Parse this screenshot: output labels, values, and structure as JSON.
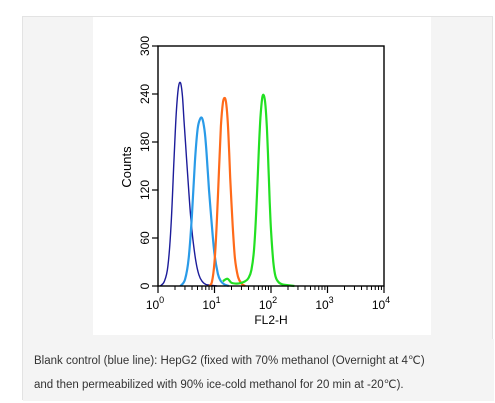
{
  "chart_data": {
    "type": "line",
    "xlabel": "FL2-H",
    "ylabel": "Counts",
    "xscale": "log",
    "xlim": [
      1,
      10000
    ],
    "ylim": [
      0,
      300
    ],
    "x_ticks": [
      {
        "value": 1,
        "base": "10",
        "exp": "0"
      },
      {
        "value": 10,
        "base": "10",
        "exp": "1"
      },
      {
        "value": 100,
        "base": "10",
        "exp": "2"
      },
      {
        "value": 1000,
        "base": "10",
        "exp": "3"
      },
      {
        "value": 10000,
        "base": "10",
        "exp": "4"
      }
    ],
    "y_ticks": [
      {
        "value": 0,
        "label": "0"
      },
      {
        "value": 60,
        "label": "60"
      },
      {
        "value": 120,
        "label": "120"
      },
      {
        "value": 180,
        "label": "180"
      },
      {
        "value": 240,
        "label": "240"
      },
      {
        "value": 300,
        "label": "300"
      }
    ],
    "grid": false,
    "series": [
      {
        "color": "#1c1c9a",
        "x": [
          1.1,
          1.3,
          1.5,
          1.7,
          1.9,
          2.1,
          2.3,
          2.5,
          2.7,
          2.9,
          3.2,
          3.5,
          3.8,
          4.2,
          4.7,
          5.3,
          6,
          7,
          8.5,
          11
        ],
        "y": [
          0,
          6,
          25,
          75,
          150,
          215,
          248,
          254,
          238,
          205,
          160,
          120,
          85,
          55,
          30,
          14,
          6,
          2,
          1,
          0
        ]
      },
      {
        "color": "#2a9be8",
        "x": [
          2.5,
          3,
          3.5,
          4,
          4.5,
          5,
          5.5,
          6,
          6.5,
          7,
          7.5,
          8,
          9,
          10,
          11.5,
          13,
          15,
          18
        ],
        "y": [
          0,
          8,
          35,
          90,
          155,
          195,
          208,
          210,
          200,
          180,
          150,
          120,
          75,
          40,
          15,
          6,
          2,
          0
        ]
      },
      {
        "color": "#ff6a1a",
        "x": [
          8,
          9,
          10,
          11,
          12,
          13,
          14,
          15,
          16,
          17,
          18,
          19,
          21,
          23,
          26,
          30,
          35
        ],
        "y": [
          0,
          5,
          30,
          80,
          145,
          200,
          228,
          235,
          230,
          210,
          175,
          135,
          75,
          35,
          12,
          3,
          0
        ]
      },
      {
        "color": "#22e022",
        "x": [
          14,
          17,
          20,
          25,
          30,
          35,
          40,
          45,
          50,
          55,
          60,
          65,
          70,
          75,
          80,
          85,
          90,
          95,
          100,
          110,
          120,
          135,
          160,
          200,
          260
        ],
        "y": [
          6,
          9,
          4,
          3,
          4,
          6,
          10,
          20,
          45,
          95,
          160,
          210,
          235,
          238,
          225,
          195,
          150,
          105,
          70,
          30,
          12,
          5,
          2,
          1,
          0
        ]
      }
    ]
  },
  "caption": {
    "line1": "Blank control (blue line): HepG2 (fixed with 70% methanol (Overnight at 4℃)",
    "line2": "and then permeabilized with 90% ice-cold methanol for 20 min at -20℃)."
  }
}
